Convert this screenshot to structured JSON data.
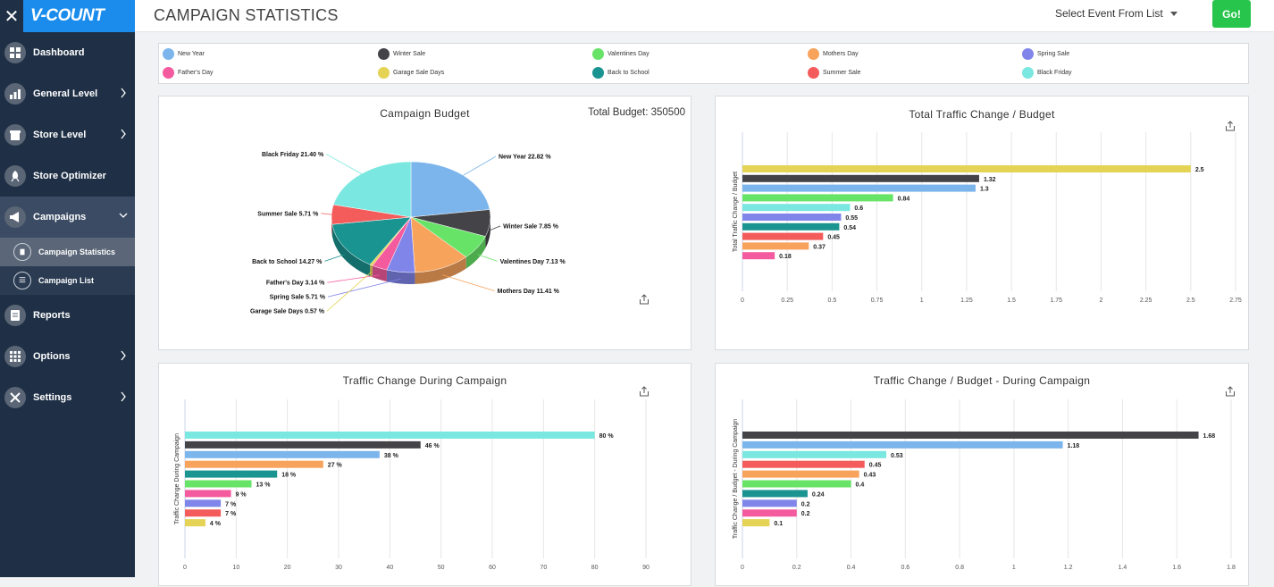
{
  "app": {
    "logo": "V-COUNT",
    "close_glyph": "✕"
  },
  "header": {
    "title": "CAMPAIGN STATISTICS",
    "event_select": "Select Event From List",
    "go_label": "Go!"
  },
  "sidebar": {
    "items": [
      {
        "label": "Dashboard",
        "icon": "dashboard-icon",
        "chevron": false
      },
      {
        "label": "General Level",
        "icon": "chart-icon",
        "chevron": true
      },
      {
        "label": "Store Level",
        "icon": "store-icon",
        "chevron": true
      },
      {
        "label": "Store Optimizer",
        "icon": "rocket-icon",
        "chevron": false
      },
      {
        "label": "Campaigns",
        "icon": "megaphone-icon",
        "chevron": true,
        "expanded": true
      },
      {
        "label": "Reports",
        "icon": "report-icon",
        "chevron": false
      },
      {
        "label": "Options",
        "icon": "grid-icon",
        "chevron": true
      },
      {
        "label": "Settings",
        "icon": "tools-icon",
        "chevron": true
      }
    ],
    "sub_items": [
      {
        "label": "Campaign Statistics",
        "icon": "clipboard-icon",
        "active": true
      },
      {
        "label": "Campaign List",
        "icon": "list-icon",
        "active": false
      }
    ]
  },
  "legend": [
    {
      "label": "New Year",
      "color": "#7cb5ec"
    },
    {
      "label": "Winter Sale",
      "color": "#434348"
    },
    {
      "label": "Valentines Day",
      "color": "#67e367"
    },
    {
      "label": "Mothers Day",
      "color": "#f7a35c"
    },
    {
      "label": "Spring Sale",
      "color": "#8085e9"
    },
    {
      "label": "Father's Day",
      "color": "#f45b9e"
    },
    {
      "label": "Garage Sale Days",
      "color": "#e4d354"
    },
    {
      "label": "Back to School",
      "color": "#1a9490"
    },
    {
      "label": "Summer Sale",
      "color": "#f45b5b"
    },
    {
      "label": "Black Friday",
      "color": "#7ae8e0"
    }
  ],
  "chart_data": [
    {
      "type": "pie",
      "title": "Campaign Budget",
      "subtitle": "Total Budget: 350500",
      "slices": [
        {
          "name": "New Year",
          "value": 22.82,
          "label": "New Year 22.82 %",
          "color": "#7cb5ec"
        },
        {
          "name": "Winter Sale",
          "value": 7.85,
          "label": "Winter Sale 7.85 %",
          "color": "#434348"
        },
        {
          "name": "Valentines Day",
          "value": 7.13,
          "label": "Valentines Day 7.13 %",
          "color": "#67e367"
        },
        {
          "name": "Mothers Day",
          "value": 11.41,
          "label": "Mothers Day 11.41 %",
          "color": "#f7a35c"
        },
        {
          "name": "Spring Sale",
          "value": 5.71,
          "label": "Spring Sale 5.71 %",
          "color": "#8085e9"
        },
        {
          "name": "Father's Day",
          "value": 3.14,
          "label": "Father's Day 3.14 %",
          "color": "#f45b9e"
        },
        {
          "name": "Garage Sale Days",
          "value": 0.57,
          "label": "Garage Sale Days 0.57 %",
          "color": "#e4d354"
        },
        {
          "name": "Back to School",
          "value": 14.27,
          "label": "Back to School 14.27 %",
          "color": "#1a9490"
        },
        {
          "name": "Summer Sale",
          "value": 5.71,
          "label": "Summer Sale 5.71 %",
          "color": "#f45b5b"
        },
        {
          "name": "Black Friday",
          "value": 21.4,
          "label": "Black Friday 21.40 %",
          "color": "#7ae8e0"
        }
      ]
    },
    {
      "type": "bar",
      "title": "Total Traffic Change / Budget",
      "ylabel": "Total Traffic Change / Budget",
      "xlim": [
        0,
        2.75
      ],
      "ticks": [
        "0",
        "0.25",
        "0.5",
        "0.75",
        "1",
        "1.25",
        "1.5",
        "1.75",
        "2",
        "2.25",
        "2.5",
        "2.75"
      ],
      "bars": [
        {
          "name": "Garage Sale Days",
          "value": 2.5,
          "label": "2.5",
          "color": "#e4d354"
        },
        {
          "name": "Winter Sale",
          "value": 1.32,
          "label": "1.32",
          "color": "#434348"
        },
        {
          "name": "New Year",
          "value": 1.3,
          "label": "1.3",
          "color": "#7cb5ec"
        },
        {
          "name": "Valentines Day",
          "value": 0.84,
          "label": "0.84",
          "color": "#67e367"
        },
        {
          "name": "Black Friday",
          "value": 0.6,
          "label": "0.6",
          "color": "#7ae8e0"
        },
        {
          "name": "Spring Sale",
          "value": 0.55,
          "label": "0.55",
          "color": "#8085e9"
        },
        {
          "name": "Back to School",
          "value": 0.54,
          "label": "0.54",
          "color": "#1a9490"
        },
        {
          "name": "Summer Sale",
          "value": 0.45,
          "label": "0.45",
          "color": "#f45b5b"
        },
        {
          "name": "Mothers Day",
          "value": 0.37,
          "label": "0.37",
          "color": "#f7a35c"
        },
        {
          "name": "Father's Day",
          "value": 0.18,
          "label": "0.18",
          "color": "#f45b9e"
        }
      ]
    },
    {
      "type": "bar",
      "title": "Traffic Change During Campaign",
      "ylabel": "Traffic Change During Campaign",
      "xlim": [
        0,
        90
      ],
      "ticks": [
        "0",
        "10",
        "20",
        "30",
        "40",
        "50",
        "60",
        "70",
        "80",
        "90"
      ],
      "bars": [
        {
          "name": "Black Friday",
          "value": 80,
          "label": "80 %",
          "color": "#7ae8e0"
        },
        {
          "name": "Winter Sale",
          "value": 46,
          "label": "46 %",
          "color": "#434348"
        },
        {
          "name": "New Year",
          "value": 38,
          "label": "38 %",
          "color": "#7cb5ec"
        },
        {
          "name": "Mothers Day",
          "value": 27,
          "label": "27 %",
          "color": "#f7a35c"
        },
        {
          "name": "Back to School",
          "value": 18,
          "label": "18 %",
          "color": "#1a9490"
        },
        {
          "name": "Valentines Day",
          "value": 13,
          "label": "13 %",
          "color": "#67e367"
        },
        {
          "name": "Father's Day",
          "value": 9,
          "label": "9 %",
          "color": "#f45b9e"
        },
        {
          "name": "Spring Sale",
          "value": 7,
          "label": "7 %",
          "color": "#8085e9"
        },
        {
          "name": "Summer Sale",
          "value": 7,
          "label": "7 %",
          "color": "#f45b5b"
        },
        {
          "name": "Garage Sale Days",
          "value": 4,
          "label": "4 %",
          "color": "#e4d354"
        }
      ]
    },
    {
      "type": "bar",
      "title": "Traffic Change / Budget - During Campaign",
      "ylabel": "Traffic Change / Budget - During Campaign",
      "xlim": [
        0,
        1.8
      ],
      "ticks": [
        "0",
        "0.2",
        "0.4",
        "0.6",
        "0.8",
        "1",
        "1.2",
        "1.4",
        "1.6",
        "1.8"
      ],
      "bars": [
        {
          "name": "Winter Sale",
          "value": 1.68,
          "label": "1.68",
          "color": "#434348"
        },
        {
          "name": "New Year",
          "value": 1.18,
          "label": "1.18",
          "color": "#7cb5ec"
        },
        {
          "name": "Black Friday",
          "value": 0.53,
          "label": "0.53",
          "color": "#7ae8e0"
        },
        {
          "name": "Summer Sale",
          "value": 0.45,
          "label": "0.45",
          "color": "#f45b5b"
        },
        {
          "name": "Mothers Day",
          "value": 0.43,
          "label": "0.43",
          "color": "#f7a35c"
        },
        {
          "name": "Valentines Day",
          "value": 0.4,
          "label": "0.4",
          "color": "#67e367"
        },
        {
          "name": "Back to School",
          "value": 0.24,
          "label": "0.24",
          "color": "#1a9490"
        },
        {
          "name": "Spring Sale",
          "value": 0.2,
          "label": "0.2",
          "color": "#8085e9"
        },
        {
          "name": "Father's Day",
          "value": 0.2,
          "label": "0.2",
          "color": "#f45b9e"
        },
        {
          "name": "Garage Sale Days",
          "value": 0.1,
          "label": "0.1",
          "color": "#e4d354"
        }
      ]
    }
  ]
}
